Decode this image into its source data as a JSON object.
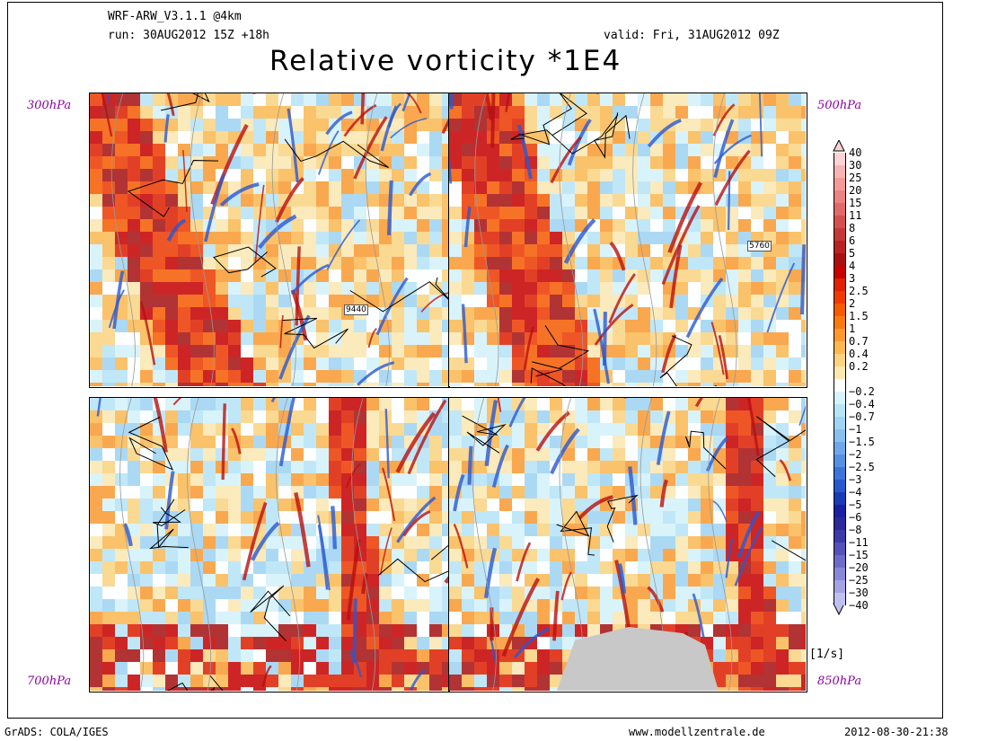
{
  "header": {
    "model": "WRF-ARW_V3.1.1 @4km",
    "run": "run: 30AUG2012 15Z +18h",
    "valid": "valid: Fri, 31AUG2012 09Z",
    "title": "Relative vorticity *1E4"
  },
  "panels": [
    {
      "id": "p300",
      "level": "300hPa",
      "contour_label": "9440"
    },
    {
      "id": "p500",
      "level": "500hPa",
      "contour_label": "5760"
    },
    {
      "id": "p700",
      "level": "700hPa",
      "contour_label": ""
    },
    {
      "id": "p850",
      "level": "850hPa",
      "contour_label": ""
    }
  ],
  "colorbar": {
    "labels": [
      "40",
      "30",
      "25",
      "20",
      "15",
      "11",
      "8",
      "6",
      "5",
      "4",
      "3",
      "2.5",
      "2",
      "1.5",
      "1",
      "0.7",
      "0.4",
      "0.2",
      "-0.2",
      "-0.4",
      "-0.7",
      "-1",
      "-1.5",
      "-2",
      "-2.5",
      "-3",
      "-4",
      "-5",
      "-6",
      "-8",
      "-11",
      "-15",
      "-20",
      "-25",
      "-30",
      "-40"
    ],
    "colors": [
      "#fcd2d2",
      "#f7b4b4",
      "#f29a9a",
      "#ec8282",
      "#e06a6a",
      "#d45050",
      "#c43838",
      "#b82222",
      "#a81010",
      "#c80000",
      "#e02000",
      "#f03a00",
      "#f85a00",
      "#fa7a10",
      "#fc9a30",
      "#fdb850",
      "#fdd380",
      "#fde8b0",
      "#ffffff",
      "#d6f2fa",
      "#b8e4f6",
      "#a0d4f2",
      "#88c0ee",
      "#6ea8ea",
      "#5690e4",
      "#3c74dc",
      "#2658d0",
      "#1a3ab8",
      "#1a20a0",
      "#2a2a9a",
      "#3c3ca8",
      "#5252b8",
      "#6c6cc8",
      "#8888d8",
      "#a4a4e4",
      "#c0c0f0"
    ],
    "unit": "[1/s]"
  },
  "footer": {
    "left": "GrADS: COLA/IGES",
    "center": "www.modellzentrale.de",
    "right": "2012-08-30-21:38"
  }
}
